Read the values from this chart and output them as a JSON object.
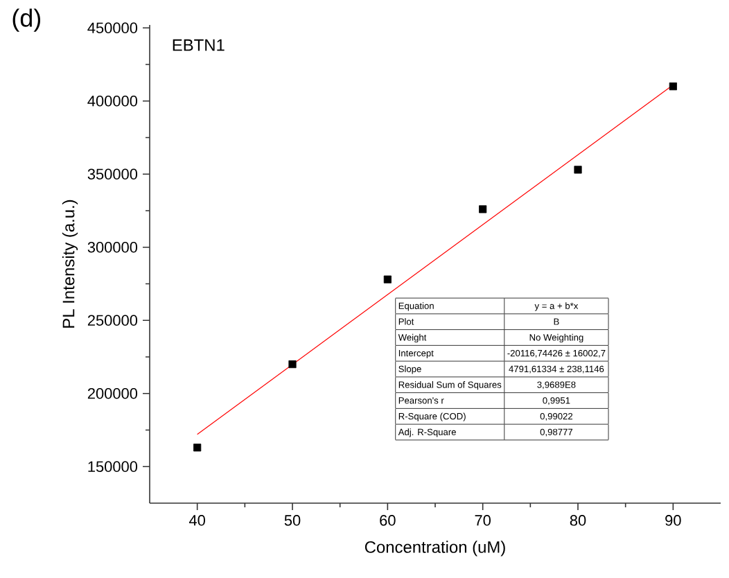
{
  "chart_data": {
    "type": "scatter",
    "title": "EBTN1",
    "xlabel": "Concentration (uM)",
    "ylabel": "PL Intensity (a.u.)",
    "annotations": [
      "(d)",
      "Equation",
      "y = a + b*x",
      "Plot",
      "B",
      "Weight",
      "No Weighting",
      "Intercept",
      "-20116,74426 ± 16002,7",
      "Slope",
      "4791,61334 ± 238,1146",
      "Residual Sum of Squares",
      "3,9689E8",
      "Pearson's r",
      "0,9951",
      "R-Square (COD)",
      "0,99022",
      "Adj. R-Square",
      "0,98777"
    ],
    "xlim": [
      35,
      95
    ],
    "xticks": [
      40,
      50,
      60,
      70,
      80,
      90
    ],
    "ylim": [
      125000,
      452000
    ],
    "yticks": [
      150000,
      200000,
      250000,
      300000,
      350000,
      400000,
      450000
    ],
    "grid": false,
    "series": [
      {
        "color": "#000000",
        "marker": "square",
        "x": [
          40,
          50,
          60,
          70,
          80,
          90
        ],
        "values": [
          163000,
          220000,
          278000,
          326000,
          353000,
          410000
        ]
      },
      {
        "type": "line",
        "color": "#ff0000",
        "marker": "none",
        "line_style": "solid",
        "x": [
          40,
          90
        ],
        "values": [
          172000,
          411000
        ]
      }
    ]
  }
}
